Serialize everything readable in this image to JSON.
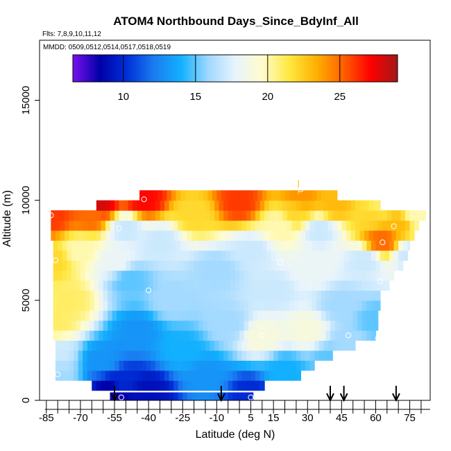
{
  "chart_data": {
    "type": "heatmap",
    "title": "ATOM4 Northbound Days_Since_BdyInf_All",
    "subtitle_flights": "Flts: 7,8,9,10,11,12",
    "subtitle_dates": "MMDD: 0509,0512,0514,0517,0518,0519",
    "xlabel": "Latitude (deg N)",
    "ylabel": "Altitude (m)",
    "xlim": [
      -88,
      84
    ],
    "ylim": [
      0,
      18000
    ],
    "x_ticks": [
      -85,
      -70,
      -55,
      -40,
      -25,
      -10,
      5,
      15,
      30,
      45,
      60,
      75
    ],
    "x_tick_labels": [
      "-85",
      "-70",
      "-55",
      "-40",
      "-25",
      "-10",
      "5",
      "15",
      "30",
      "45",
      "60",
      "75"
    ],
    "y_ticks": [
      0,
      5000,
      10000,
      15000
    ],
    "y_tick_labels": [
      "0",
      "5000",
      "10000",
      "15000"
    ],
    "colorbar": {
      "min": 6.5,
      "max": 29,
      "ticks": [
        10,
        15,
        20,
        25
      ],
      "tick_labels": [
        "10",
        "15",
        "20",
        "25"
      ],
      "colors": [
        "#7a10ee",
        "#0000a8",
        "#0030d8",
        "#1a7cf0",
        "#12b0ff",
        "#9fd8ff",
        "#e8f4fc",
        "#fffccc",
        "#ffe840",
        "#ffb000",
        "#ff6000",
        "#ff0000",
        "#a01818"
      ]
    },
    "altitude_bands": [
      {
        "alt": 150,
        "lat_min": -57,
        "lat_max": 6
      },
      {
        "alt": 750,
        "lat_min": -65,
        "lat_max": 11
      },
      {
        "alt": 1250,
        "lat_min": -81,
        "lat_max": 27
      },
      {
        "alt": 1750,
        "lat_min": -81,
        "lat_max": 33
      },
      {
        "alt": 2250,
        "lat_min": -81,
        "lat_max": 41
      },
      {
        "alt": 2750,
        "lat_min": -81,
        "lat_max": 51
      },
      {
        "alt": 3250,
        "lat_min": -82,
        "lat_max": 60
      },
      {
        "alt": 3750,
        "lat_min": -82,
        "lat_max": 61
      },
      {
        "alt": 4250,
        "lat_min": -82,
        "lat_max": 61
      },
      {
        "alt": 4750,
        "lat_min": -82,
        "lat_max": 62
      },
      {
        "alt": 5250,
        "lat_min": -82,
        "lat_max": 62
      },
      {
        "alt": 5750,
        "lat_min": -82,
        "lat_max": 66
      },
      {
        "alt": 6250,
        "lat_min": -82,
        "lat_max": 68
      },
      {
        "alt": 6750,
        "lat_min": -82,
        "lat_max": 72
      },
      {
        "alt": 7250,
        "lat_min": -82,
        "lat_max": 74
      },
      {
        "alt": 7750,
        "lat_min": -82,
        "lat_max": 75
      },
      {
        "alt": 8250,
        "lat_min": -83,
        "lat_max": 77
      },
      {
        "alt": 8750,
        "lat_min": -83,
        "lat_max": 79
      },
      {
        "alt": 9250,
        "lat_min": -83,
        "lat_max": 82
      },
      {
        "alt": 9750,
        "lat_min": -63,
        "lat_max": 62
      },
      {
        "alt": 10250,
        "lat_min": -44,
        "lat_max": 43
      }
    ],
    "field_anchors": [
      {
        "lat": -83,
        "alt": 9200,
        "value": 26
      },
      {
        "lat": -82,
        "alt": 7000,
        "value": 22
      },
      {
        "lat": -81,
        "alt": 4000,
        "value": 21
      },
      {
        "lat": -81,
        "alt": 2200,
        "value": 17
      },
      {
        "lat": -80,
        "alt": 1300,
        "value": 16
      },
      {
        "lat": -75,
        "alt": 5000,
        "value": 21
      },
      {
        "lat": -70,
        "alt": 7500,
        "value": 20
      },
      {
        "lat": -65,
        "alt": 9300,
        "value": 25
      },
      {
        "lat": -62,
        "alt": 9900,
        "value": 28
      },
      {
        "lat": -60,
        "alt": 2000,
        "value": 13
      },
      {
        "lat": -56,
        "alt": 400,
        "value": 8
      },
      {
        "lat": -55,
        "alt": 7000,
        "value": 18
      },
      {
        "lat": -52,
        "alt": 1000,
        "value": 10
      },
      {
        "lat": -50,
        "alt": 8600,
        "value": 17
      },
      {
        "lat": -48,
        "alt": 6000,
        "value": 15
      },
      {
        "lat": -45,
        "alt": 3500,
        "value": 13
      },
      {
        "lat": -42,
        "alt": 10000,
        "value": 27
      },
      {
        "lat": -40,
        "alt": 400,
        "value": 9
      },
      {
        "lat": -35,
        "alt": 8000,
        "value": 17
      },
      {
        "lat": -30,
        "alt": 5000,
        "value": 16
      },
      {
        "lat": -25,
        "alt": 2500,
        "value": 14
      },
      {
        "lat": -20,
        "alt": 9300,
        "value": 22
      },
      {
        "lat": -15,
        "alt": 1200,
        "value": 13
      },
      {
        "lat": -10,
        "alt": 6500,
        "value": 16
      },
      {
        "lat": -5,
        "alt": 3800,
        "value": 16
      },
      {
        "lat": 0,
        "alt": 9900,
        "value": 26
      },
      {
        "lat": 5,
        "alt": 300,
        "value": 10
      },
      {
        "lat": 5,
        "alt": 7500,
        "value": 17
      },
      {
        "lat": 10,
        "alt": 3200,
        "value": 19
      },
      {
        "lat": 15,
        "alt": 5500,
        "value": 17
      },
      {
        "lat": 18,
        "alt": 8800,
        "value": 20
      },
      {
        "lat": 20,
        "alt": 1500,
        "value": 14
      },
      {
        "lat": 25,
        "alt": 9300,
        "value": 22
      },
      {
        "lat": 27,
        "alt": 10200,
        "value": 24
      },
      {
        "lat": 30,
        "alt": 3500,
        "value": 19
      },
      {
        "lat": 32,
        "alt": 6500,
        "value": 18
      },
      {
        "lat": 35,
        "alt": 8500,
        "value": 17
      },
      {
        "lat": 40,
        "alt": 2000,
        "value": 15
      },
      {
        "lat": 42,
        "alt": 9800,
        "value": 23
      },
      {
        "lat": 45,
        "alt": 4800,
        "value": 16
      },
      {
        "lat": 48,
        "alt": 3000,
        "value": 16
      },
      {
        "lat": 55,
        "alt": 7000,
        "value": 17
      },
      {
        "lat": 58,
        "alt": 9300,
        "value": 22
      },
      {
        "lat": 60,
        "alt": 4000,
        "value": 15
      },
      {
        "lat": 62,
        "alt": 9800,
        "value": 21
      },
      {
        "lat": 63,
        "alt": 8000,
        "value": 25
      },
      {
        "lat": 70,
        "alt": 8800,
        "value": 23
      },
      {
        "lat": 78,
        "alt": 9200,
        "value": 20
      },
      {
        "lat": 75,
        "alt": 7300,
        "value": 17
      }
    ],
    "sample_points": [
      {
        "lat": -83,
        "alt": 9250
      },
      {
        "lat": -81,
        "alt": 7000
      },
      {
        "lat": -80,
        "alt": 1300
      },
      {
        "lat": -53,
        "alt": 8600
      },
      {
        "lat": -52,
        "alt": 150
      },
      {
        "lat": -42,
        "alt": 10050
      },
      {
        "lat": -40,
        "alt": 5500
      },
      {
        "lat": 5,
        "alt": 150
      },
      {
        "lat": 10,
        "alt": 3250
      },
      {
        "lat": 18,
        "alt": 6900
      },
      {
        "lat": 27,
        "alt": 10550
      },
      {
        "lat": 48,
        "alt": 3250
      },
      {
        "lat": 61,
        "alt": 3100
      },
      {
        "lat": 62,
        "alt": 5950
      },
      {
        "lat": 63,
        "alt": 7900
      },
      {
        "lat": 68,
        "alt": 8700
      },
      {
        "lat": 79,
        "alt": 8200
      }
    ],
    "vertical_marks": [
      {
        "lat": 26,
        "alt_min": 10300,
        "alt_max": 11000
      }
    ],
    "arrows": [
      {
        "lat": -55
      },
      {
        "lat": -8
      },
      {
        "lat": 40
      },
      {
        "lat": 46
      },
      {
        "lat": 69
      }
    ]
  }
}
